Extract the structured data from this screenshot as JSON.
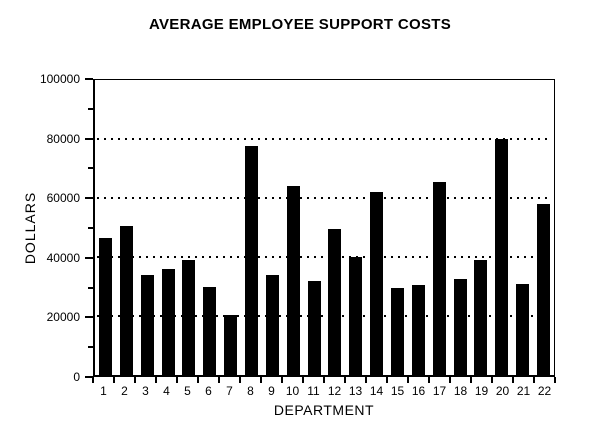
{
  "chart_data": {
    "type": "bar",
    "title": "AVERAGE EMPLOYEE SUPPORT COSTS",
    "xlabel": "DEPARTMENT",
    "ylabel": "DOLLARS",
    "ylim": [
      0,
      100000
    ],
    "y_major_ticks": [
      0,
      20000,
      40000,
      60000,
      80000,
      100000
    ],
    "y_minor_tick_step": 10000,
    "gridlines_at": [
      20000,
      40000,
      60000,
      80000
    ],
    "grid_style": "dotted",
    "legend": "none",
    "bar_color": "#000000",
    "background_color": "#ffffff",
    "categories": [
      "1",
      "2",
      "3",
      "4",
      "5",
      "6",
      "7",
      "8",
      "9",
      "10",
      "11",
      "12",
      "13",
      "14",
      "15",
      "16",
      "17",
      "18",
      "19",
      "20",
      "21",
      "22"
    ],
    "values": [
      46500,
      50500,
      34000,
      36000,
      39000,
      30000,
      20500,
      77500,
      34000,
      64000,
      32000,
      49500,
      40000,
      62000,
      29500,
      30500,
      65500,
      32500,
      39000,
      80000,
      31000,
      58000
    ]
  }
}
